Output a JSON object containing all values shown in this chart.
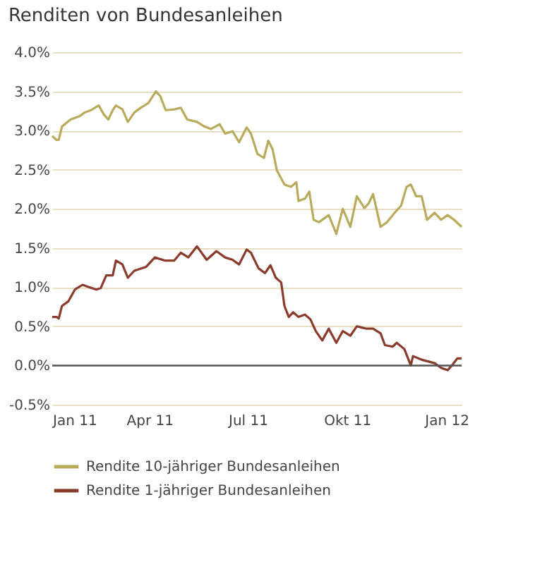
{
  "chart_data": {
    "type": "line",
    "title": "Renditen von Bundesanleihen",
    "xlim": [
      "2011-01-01",
      "2012-01-15"
    ],
    "xticks": [
      {
        "value": "2011-01-01",
        "label": "Jan 11"
      },
      {
        "value": "2011-04-01",
        "label": "Apr 11"
      },
      {
        "value": "2011-07-01",
        "label": "Jul 11"
      },
      {
        "value": "2011-10-01",
        "label": "Okt 11"
      },
      {
        "value": "2012-01-01",
        "label": "Jan 12"
      }
    ],
    "ylim": [
      -0.5,
      4.0
    ],
    "yticks": [
      {
        "value": -0.5,
        "label": "-0.5%"
      },
      {
        "value": 0,
        "label": "0.0%"
      },
      {
        "value": 0.5,
        "label": "0.5%"
      },
      {
        "value": 1,
        "label": "1.0%"
      },
      {
        "value": 1.5,
        "label": "1.5%"
      },
      {
        "value": 2,
        "label": "2.0%"
      },
      {
        "value": 2.5,
        "label": "2.5%"
      },
      {
        "value": 3,
        "label": "3.0%"
      },
      {
        "value": 3.5,
        "label": "3.5%"
      },
      {
        "value": 4,
        "label": "4.0%"
      }
    ],
    "grid": "y",
    "legend": "bottom",
    "ref_lines": [
      {
        "axis": "y",
        "value": 0,
        "color": "#555555"
      }
    ],
    "series": [
      {
        "name": "Rendite 10-jähriger Bundesanleihen",
        "color": "#b9aa5c",
        "x": [
          "2011-01-01",
          "2011-01-05",
          "2011-01-07",
          "2011-01-10",
          "2011-01-18",
          "2011-01-26",
          "2011-01-31",
          "2011-02-06",
          "2011-02-13",
          "2011-02-18",
          "2011-02-22",
          "2011-02-26",
          "2011-03-01",
          "2011-03-07",
          "2011-03-12",
          "2011-03-18",
          "2011-03-24",
          "2011-03-31",
          "2011-04-07",
          "2011-04-11",
          "2011-04-16",
          "2011-04-24",
          "2011-04-30",
          "2011-05-06",
          "2011-05-15",
          "2011-05-22",
          "2011-05-28",
          "2011-06-05",
          "2011-06-10",
          "2011-06-17",
          "2011-06-23",
          "2011-06-30",
          "2011-07-04",
          "2011-07-10",
          "2011-07-16",
          "2011-07-20",
          "2011-07-24",
          "2011-07-28",
          "2011-08-04",
          "2011-08-10",
          "2011-08-15",
          "2011-08-17",
          "2011-08-23",
          "2011-08-27",
          "2011-08-31",
          "2011-09-05",
          "2011-09-14",
          "2011-09-21",
          "2011-09-27",
          "2011-10-04",
          "2011-10-10",
          "2011-10-17",
          "2011-10-21",
          "2011-10-25",
          "2011-11-01",
          "2011-11-07",
          "2011-11-14",
          "2011-11-20",
          "2011-11-25",
          "2011-11-29",
          "2011-12-04",
          "2011-12-09",
          "2011-12-14",
          "2011-12-21",
          "2011-12-27",
          "2012-01-02",
          "2012-01-08",
          "2012-01-15"
        ],
        "values": [
          2.93,
          2.88,
          2.88,
          3.05,
          3.14,
          3.18,
          3.23,
          3.26,
          3.32,
          3.2,
          3.14,
          3.26,
          3.32,
          3.27,
          3.11,
          3.23,
          3.29,
          3.35,
          3.5,
          3.44,
          3.26,
          3.27,
          3.29,
          3.14,
          3.11,
          3.05,
          3.02,
          3.08,
          2.96,
          2.99,
          2.85,
          3.04,
          2.96,
          2.7,
          2.65,
          2.87,
          2.76,
          2.49,
          2.31,
          2.28,
          2.34,
          2.1,
          2.13,
          2.22,
          1.86,
          1.83,
          1.92,
          1.68,
          2.0,
          1.77,
          2.16,
          2.01,
          2.07,
          2.19,
          1.77,
          1.83,
          1.95,
          2.04,
          2.28,
          2.31,
          2.16,
          2.16,
          1.86,
          1.95,
          1.86,
          1.92,
          1.86,
          1.77
        ]
      },
      {
        "name": "Rendite 1-jähriger Bundesanleihen",
        "color": "#8b3b2b",
        "x": [
          "2011-01-01",
          "2011-01-05",
          "2011-01-07",
          "2011-01-10",
          "2011-01-16",
          "2011-01-22",
          "2011-01-29",
          "2011-02-04",
          "2011-02-11",
          "2011-02-15",
          "2011-02-20",
          "2011-02-26",
          "2011-03-01",
          "2011-03-07",
          "2011-03-12",
          "2011-03-18",
          "2011-03-29",
          "2011-04-06",
          "2011-04-15",
          "2011-04-24",
          "2011-04-30",
          "2011-05-07",
          "2011-05-15",
          "2011-05-24",
          "2011-06-02",
          "2011-06-10",
          "2011-06-17",
          "2011-06-23",
          "2011-06-30",
          "2011-07-04",
          "2011-07-11",
          "2011-07-17",
          "2011-07-22",
          "2011-07-27",
          "2011-08-01",
          "2011-08-04",
          "2011-08-08",
          "2011-08-12",
          "2011-08-17",
          "2011-08-23",
          "2011-08-28",
          "2011-09-02",
          "2011-09-08",
          "2011-09-14",
          "2011-09-21",
          "2011-09-27",
          "2011-10-04",
          "2011-10-10",
          "2011-10-19",
          "2011-10-25",
          "2011-11-01",
          "2011-11-05",
          "2011-11-12",
          "2011-11-16",
          "2011-11-23",
          "2011-11-29",
          "2011-12-01",
          "2011-12-10",
          "2011-12-21",
          "2011-12-27",
          "2012-01-02",
          "2012-01-06",
          "2012-01-11",
          "2012-01-15"
        ],
        "values": [
          0.62,
          0.62,
          0.6,
          0.76,
          0.82,
          0.97,
          1.03,
          1.0,
          0.97,
          0.99,
          1.15,
          1.15,
          1.34,
          1.29,
          1.12,
          1.21,
          1.26,
          1.38,
          1.34,
          1.34,
          1.44,
          1.38,
          1.52,
          1.35,
          1.46,
          1.38,
          1.35,
          1.29,
          1.48,
          1.44,
          1.24,
          1.18,
          1.28,
          1.12,
          1.06,
          0.76,
          0.62,
          0.68,
          0.62,
          0.65,
          0.59,
          0.44,
          0.32,
          0.47,
          0.29,
          0.44,
          0.38,
          0.5,
          0.47,
          0.47,
          0.41,
          0.26,
          0.24,
          0.29,
          0.21,
          0.0,
          0.12,
          0.07,
          0.03,
          -0.03,
          -0.06,
          0.0,
          0.09,
          0.09
        ]
      }
    ]
  }
}
